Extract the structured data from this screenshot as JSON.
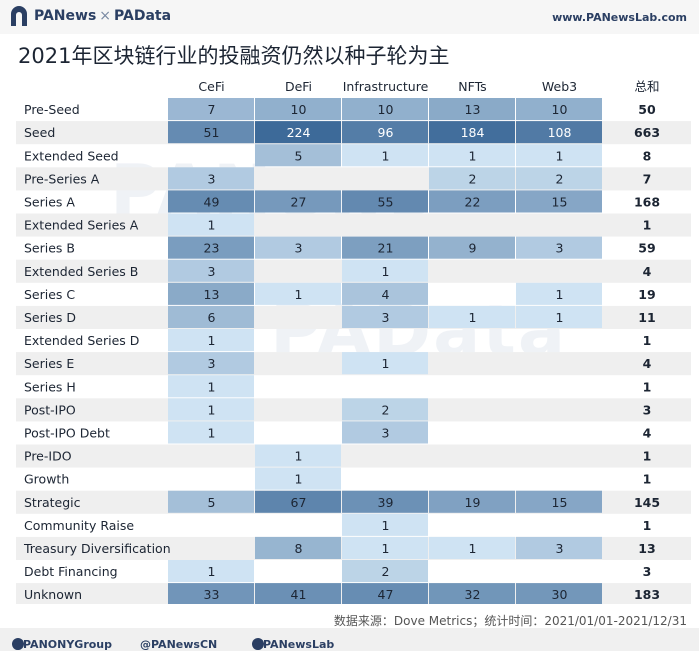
{
  "header": {
    "brand_left": "PANews",
    "brand_sep": "×",
    "brand_right": "PAData",
    "site": "www.PANewsLab.com"
  },
  "title": "2021年区块链行业的投融资仍然以种子轮为主",
  "watermarks": [
    "PANews",
    "PAData"
  ],
  "source": "数据来源：Dove Metrics；统计时间：2021/01/01-2021/12/31",
  "footer": {
    "twitter": "@PANONYGroup",
    "weibo": "@PANewsCN",
    "facebook": "@PANewsLab"
  },
  "colors": {
    "scale_low": "#cfe3f3",
    "scale_high": "#3d6a99",
    "row_band": "#efefef",
    "text_dark": "#1c2533"
  },
  "chart_data": {
    "type": "table",
    "columns": [
      "CeFi",
      "DeFi",
      "Infrastructure",
      "NFTs",
      "Web3"
    ],
    "total_label": "总和",
    "rows": [
      {
        "label": "Pre-Seed",
        "values": [
          7,
          10,
          10,
          13,
          10
        ],
        "total": 50
      },
      {
        "label": "Seed",
        "values": [
          51,
          224,
          96,
          184,
          108
        ],
        "total": 663
      },
      {
        "label": "Extended Seed",
        "values": [
          null,
          5,
          1,
          1,
          1
        ],
        "total": 8
      },
      {
        "label": "Pre-Series A",
        "values": [
          3,
          null,
          null,
          2,
          2
        ],
        "total": 7
      },
      {
        "label": "Series A",
        "values": [
          49,
          27,
          55,
          22,
          15
        ],
        "total": 168
      },
      {
        "label": "Extended Series A",
        "values": [
          1,
          null,
          null,
          null,
          null
        ],
        "total": 1
      },
      {
        "label": "Series B",
        "values": [
          23,
          3,
          21,
          9,
          3
        ],
        "total": 59
      },
      {
        "label": "Extended Series B",
        "values": [
          3,
          null,
          1,
          null,
          null
        ],
        "total": 4
      },
      {
        "label": "Series C",
        "values": [
          13,
          1,
          4,
          null,
          1
        ],
        "total": 19
      },
      {
        "label": "Series D",
        "values": [
          6,
          null,
          3,
          1,
          1
        ],
        "total": 11
      },
      {
        "label": "Extended Series D",
        "values": [
          1,
          null,
          null,
          null,
          null
        ],
        "total": 1
      },
      {
        "label": "Series E",
        "values": [
          3,
          null,
          1,
          null,
          null
        ],
        "total": 4
      },
      {
        "label": "Series H",
        "values": [
          1,
          null,
          null,
          null,
          null
        ],
        "total": 1
      },
      {
        "label": "Post-IPO",
        "values": [
          1,
          null,
          2,
          null,
          null
        ],
        "total": 3
      },
      {
        "label": "Post-IPO Debt",
        "values": [
          1,
          null,
          3,
          null,
          null
        ],
        "total": 4
      },
      {
        "label": "Pre-IDO",
        "values": [
          null,
          1,
          null,
          null,
          null
        ],
        "total": 1
      },
      {
        "label": "Growth",
        "values": [
          null,
          1,
          null,
          null,
          null
        ],
        "total": 1
      },
      {
        "label": "Strategic",
        "values": [
          5,
          67,
          39,
          19,
          15
        ],
        "total": 145
      },
      {
        "label": "Community Raise",
        "values": [
          null,
          null,
          1,
          null,
          null
        ],
        "total": 1
      },
      {
        "label": "Treasury Diversification",
        "values": [
          null,
          8,
          1,
          1,
          3
        ],
        "total": 13
      },
      {
        "label": "Debt Financing",
        "values": [
          1,
          null,
          2,
          null,
          null
        ],
        "total": 3
      },
      {
        "label": "Unknown",
        "values": [
          33,
          41,
          47,
          32,
          30
        ],
        "total": 183
      }
    ]
  }
}
